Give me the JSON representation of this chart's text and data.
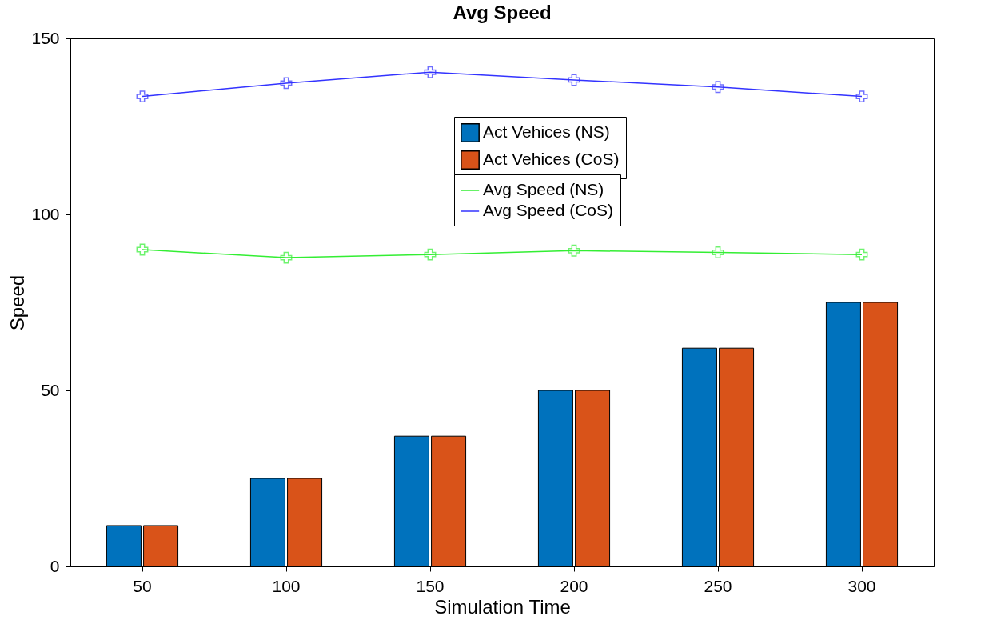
{
  "chart_data": {
    "type": "bar",
    "title": "Avg Speed",
    "xlabel": "Simulation Time",
    "ylabel": "Speed",
    "categories": [
      "50",
      "100",
      "150",
      "200",
      "250",
      "300"
    ],
    "ylim": [
      0,
      150
    ],
    "yticks": [
      0,
      50,
      100,
      150
    ],
    "grid": false,
    "legend": "top",
    "marker": "cross",
    "line_style": "solid",
    "series": [
      {
        "name": "Act Vehices (NS)",
        "color": "#0072bd",
        "values": [
          11.6,
          25,
          37,
          50,
          62,
          75
        ]
      },
      {
        "name": "Act Vehices (CoS)",
        "color": "#d95319",
        "values": [
          11.6,
          25,
          37,
          50,
          62,
          75
        ]
      },
      {
        "name": "Avg Speed (NS)",
        "type": "line",
        "color": "#33ee33",
        "values": [
          90,
          87.7,
          88.6,
          89.7,
          89.2,
          88.6
        ]
      },
      {
        "name": "Avg Speed (CoS)",
        "type": "line",
        "color": "#3333ff",
        "values": [
          133.5,
          137.3,
          140.4,
          138.2,
          136.2,
          133.5
        ]
      }
    ]
  }
}
